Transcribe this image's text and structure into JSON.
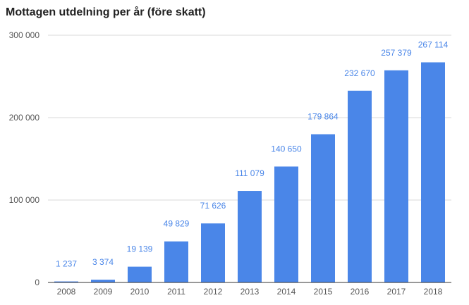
{
  "colors": {
    "bar": "#4a86e8",
    "grid": "#d9d9d9",
    "axis": "#333333",
    "label": "#4a86e8"
  },
  "chart_data": {
    "type": "bar",
    "title": "Mottagen utdelning per år (före skatt)",
    "categories": [
      "2008",
      "2009",
      "2010",
      "2011",
      "2012",
      "2013",
      "2014",
      "2015",
      "2016",
      "2017",
      "2018"
    ],
    "values": [
      1237,
      3374,
      19139,
      49829,
      71626,
      111079,
      140650,
      179864,
      232670,
      257379,
      267114
    ],
    "data_labels": [
      "1 237",
      "3 374",
      "19 139",
      "49 829",
      "71 626",
      "111 079",
      "140 650",
      "179 864",
      "232 670",
      "257 379",
      "267 114"
    ],
    "yticks": [
      0,
      100000,
      200000,
      300000
    ],
    "ytick_labels": [
      "0",
      "100 000",
      "200 000",
      "300 000"
    ],
    "ylim": [
      0,
      300000
    ],
    "xlabel": "",
    "ylabel": "",
    "grid": true,
    "legend": "none"
  }
}
